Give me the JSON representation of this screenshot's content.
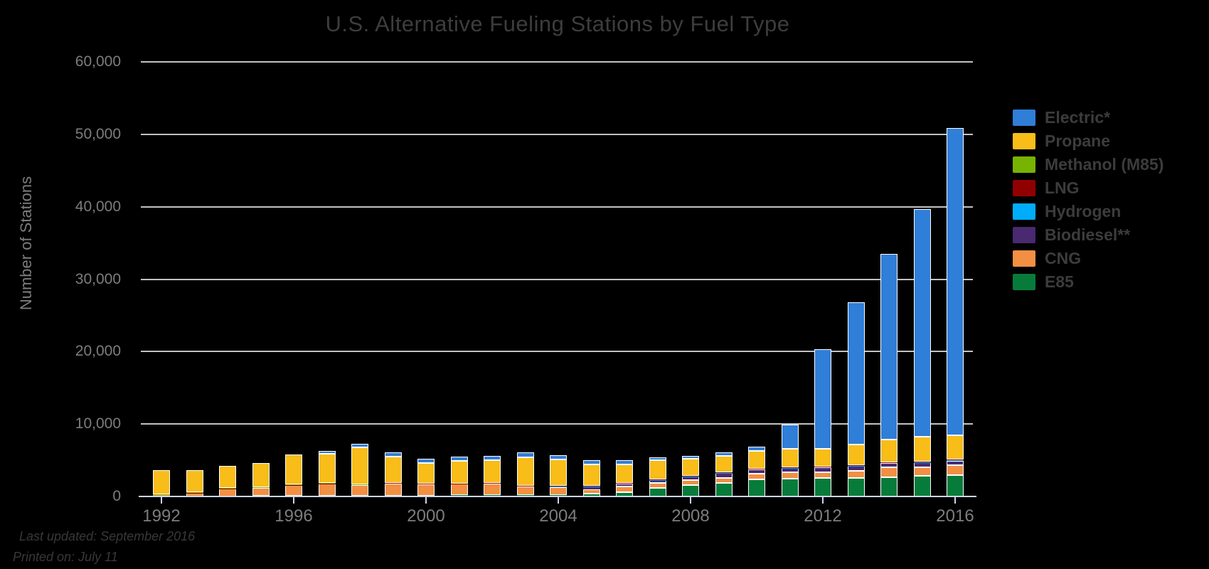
{
  "title": "U.S. Alternative Fueling Stations by Fuel Type",
  "y_axis": {
    "title": "Number of Stations",
    "ticks": [
      {
        "value": 0,
        "label": "0"
      },
      {
        "value": 10000,
        "label": "10,000"
      },
      {
        "value": 20000,
        "label": "20,000"
      },
      {
        "value": 30000,
        "label": "30,000"
      },
      {
        "value": 40000,
        "label": "40,000"
      },
      {
        "value": 50000,
        "label": "50,000"
      },
      {
        "value": 60000,
        "label": "60,000"
      }
    ]
  },
  "x_axis": {
    "tick_years": [
      1992,
      1996,
      2000,
      2004,
      2008,
      2012,
      2016
    ]
  },
  "legend": {
    "items": [
      {
        "label": "Electric*",
        "color": "#2f7ed8"
      },
      {
        "label": "Propane",
        "color": "#f8bd19"
      },
      {
        "label": "Methanol (M85)",
        "color": "#77b300"
      },
      {
        "label": "LNG",
        "color": "#910000"
      },
      {
        "label": "Hydrogen",
        "color": "#00adfa"
      },
      {
        "label": "Biodiesel**",
        "color": "#492970"
      },
      {
        "label": "CNG",
        "color": "#f28f43"
      },
      {
        "label": "E85",
        "color": "#077c3a"
      }
    ]
  },
  "footer": {
    "line1": "Last updated: September 2016",
    "line2": "Printed on: July 11"
  },
  "chart_data": {
    "type": "bar",
    "stacked": true,
    "title": "U.S. Alternative Fueling Stations by Fuel Type",
    "xlabel": "",
    "ylabel": "Number of Stations",
    "ylim": [
      0,
      60000
    ],
    "grid": true,
    "legend_position": "right",
    "x": [
      1992,
      1993,
      1994,
      1995,
      1996,
      1997,
      1998,
      1999,
      2000,
      2001,
      2002,
      2003,
      2004,
      2005,
      2006,
      2007,
      2008,
      2009,
      2010,
      2011,
      2012,
      2013,
      2014,
      2015,
      2016
    ],
    "series": [
      {
        "key": "e85",
        "name": "E85",
        "color": "#077c3a",
        "values": [
          0,
          0,
          40,
          80,
          100,
          110,
          120,
          130,
          140,
          150,
          160,
          180,
          200,
          350,
          620,
          1150,
          1550,
          1900,
          2350,
          2450,
          2550,
          2600,
          2700,
          2800,
          2980
        ]
      },
      {
        "key": "cng",
        "name": "CNG",
        "color": "#f28f43",
        "values": [
          250,
          480,
          1000,
          1120,
          1450,
          1650,
          1480,
          1670,
          1550,
          1570,
          1620,
          1190,
          1080,
          680,
          780,
          720,
          740,
          680,
          750,
          850,
          800,
          900,
          1300,
          1250,
          1330
        ]
      },
      {
        "key": "biodiesel",
        "name": "Biodiesel**",
        "color": "#492970",
        "values": [
          0,
          0,
          0,
          0,
          0,
          0,
          0,
          0,
          0,
          20,
          60,
          80,
          100,
          320,
          390,
          390,
          420,
          620,
          650,
          580,
          680,
          720,
          620,
          630,
          620
        ]
      },
      {
        "key": "hydrogen",
        "name": "Hydrogen",
        "color": "#00adfa",
        "values": [
          0,
          0,
          0,
          0,
          0,
          0,
          0,
          0,
          0,
          0,
          0,
          0,
          10,
          20,
          30,
          40,
          50,
          50,
          50,
          50,
          50,
          50,
          50,
          50,
          60
        ]
      },
      {
        "key": "lng",
        "name": "LNG",
        "color": "#910000",
        "values": [
          0,
          30,
          40,
          40,
          40,
          50,
          50,
          50,
          50,
          50,
          50,
          60,
          60,
          60,
          60,
          60,
          60,
          60,
          60,
          60,
          70,
          80,
          90,
          100,
          110
        ]
      },
      {
        "key": "methanol",
        "name": "Methanol (M85)",
        "color": "#77b300",
        "values": [
          80,
          80,
          80,
          80,
          80,
          60,
          40,
          0,
          0,
          0,
          0,
          0,
          0,
          0,
          0,
          0,
          0,
          0,
          0,
          0,
          0,
          0,
          0,
          0,
          0
        ]
      },
      {
        "key": "propane",
        "name": "Propane",
        "color": "#f8bd19",
        "values": [
          3300,
          3060,
          3080,
          3260,
          4140,
          4000,
          5130,
          3620,
          2850,
          3080,
          3080,
          3880,
          3660,
          2970,
          2570,
          2620,
          2400,
          2330,
          2450,
          2600,
          2400,
          2800,
          3050,
          3450,
          3350
        ]
      },
      {
        "key": "electric",
        "name": "Electric*",
        "color": "#2f7ed8",
        "values": [
          0,
          0,
          0,
          0,
          0,
          370,
          470,
          650,
          570,
          620,
          630,
          650,
          600,
          650,
          600,
          450,
          420,
          400,
          600,
          3350,
          13800,
          19700,
          25700,
          31400,
          42400
        ]
      }
    ]
  }
}
